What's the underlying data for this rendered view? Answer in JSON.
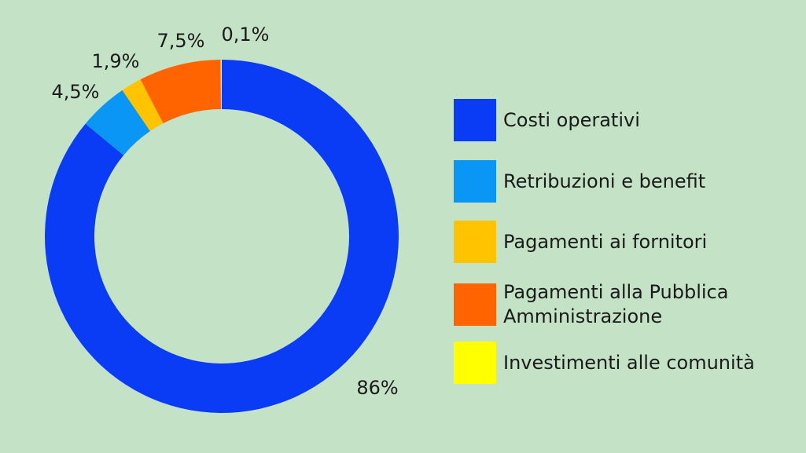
{
  "chart_data": {
    "type": "pie",
    "variant": "donut",
    "background": "#c4e2c6",
    "categories": [
      "Costi operativi",
      "Retribuzioni e benefit",
      "Pagamenti ai fornitori",
      "Pagamenti alla Pubblica Amministrazione",
      "Investimenti alle comunità"
    ],
    "values": [
      86,
      4.5,
      1.9,
      7.5,
      0.1
    ],
    "value_labels": [
      "86%",
      "4,5%",
      "1,9%",
      "7,5%",
      "0,1%"
    ],
    "colors": [
      "#0a3cf5",
      "#0996f5",
      "#ffc300",
      "#ff6400",
      "#ffff00"
    ],
    "legend": {
      "placement": "right",
      "items": [
        {
          "label": "Costi operativi",
          "color": "#0a3cf5"
        },
        {
          "label": "Retribuzioni e benefit",
          "color": "#0996f5"
        },
        {
          "label": "Pagamenti ai fornitori",
          "color": "#ffc300"
        },
        {
          "label": "Pagamenti alla Pubblica Amministrazione",
          "color": "#ff6400"
        },
        {
          "label": "Investimenti alle comunità",
          "color": "#ffff00"
        }
      ]
    },
    "title": "",
    "direction": "clockwise from top"
  }
}
